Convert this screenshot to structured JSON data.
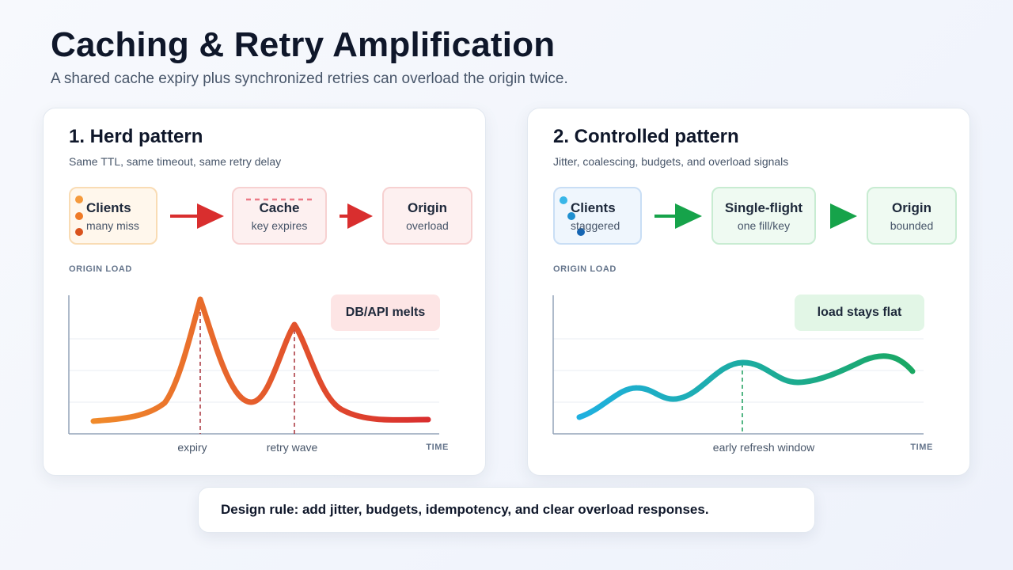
{
  "title": "Caching & Retry Amplification",
  "subtitle": "A shared cache expiry plus synchronized retries can overload the origin twice.",
  "herd": {
    "title": "1. Herd pattern",
    "subtitle": "Same TTL, same timeout, same retry delay",
    "nodes": [
      {
        "title": "Clients",
        "sub": "many miss"
      },
      {
        "title": "Cache",
        "sub": "key expires"
      },
      {
        "title": "Origin",
        "sub": "overload"
      }
    ],
    "load_label": "ORIGIN LOAD",
    "callout": "DB/API melts",
    "x_ticks": [
      "expiry",
      "retry wave"
    ],
    "x_axis": "TIME"
  },
  "controlled": {
    "title": "2. Controlled pattern",
    "subtitle": "Jitter, coalescing, budgets, and overload signals",
    "nodes": [
      {
        "title": "Clients",
        "sub": "staggered"
      },
      {
        "title": "Single-flight",
        "sub": "one fill/key"
      },
      {
        "title": "Origin",
        "sub": "bounded"
      }
    ],
    "load_label": "ORIGIN LOAD",
    "callout": "load stays flat",
    "x_ticks": [
      "early refresh window"
    ],
    "x_axis": "TIME"
  },
  "design_rule": "Design rule: add jitter, budgets, idempotency, and clear overload responses.",
  "colors": {
    "herd_curve_start": "#f08a2a",
    "herd_curve_end": "#d92e2e",
    "controlled_curve_start": "#1fb0e0",
    "controlled_curve_end": "#1aa862",
    "herd_arrow": "#d92e2e",
    "controlled_arrow": "#16a34a"
  },
  "icons": [
    "right-arrow-icon",
    "client-dot-icon"
  ]
}
